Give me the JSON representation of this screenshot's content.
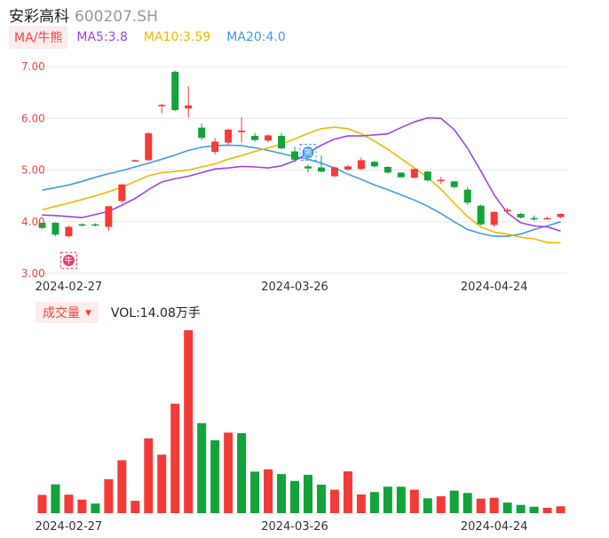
{
  "header": {
    "name": "安彩高科",
    "code": "600207.SH"
  },
  "ma_legend": {
    "tag": "MA/牛熊",
    "ma5": "MA5:3.8",
    "ma10": "MA10:3.59",
    "ma20": "MA20:4.0"
  },
  "volume_legend": {
    "tag": "成交量",
    "value": "VOL:14.08万手"
  },
  "colors": {
    "up": "#f23b36",
    "down": "#12a33a",
    "ma5": "#a244e6",
    "ma10": "#f2b900",
    "ma20": "#3f9be8",
    "grid": "#e8e8e8"
  },
  "markers": [
    {
      "label": "牛",
      "index": 2
    },
    {
      "label": "熊",
      "index": 20
    }
  ],
  "chart_data": [
    {
      "type": "candlestick",
      "y_ticks": [
        "3.00",
        "4.00",
        "5.00",
        "6.00",
        "7.00"
      ],
      "ylim": [
        3.0,
        7.0
      ],
      "x_ticks": [
        {
          "label": "2024-02-27",
          "index": 2
        },
        {
          "label": "2024-03-26",
          "index": 19
        },
        {
          "label": "2024-04-24",
          "index": 34
        }
      ],
      "candles": [
        {
          "o": 3.98,
          "c": 3.88,
          "h": 3.98,
          "l": 3.86
        },
        {
          "o": 3.98,
          "c": 3.75,
          "h": 3.99,
          "l": 3.72
        },
        {
          "o": 3.72,
          "c": 3.9,
          "h": 3.92,
          "l": 3.7
        },
        {
          "o": 3.95,
          "c": 3.93,
          "h": 3.97,
          "l": 3.91
        },
        {
          "o": 3.95,
          "c": 3.93,
          "h": 3.97,
          "l": 3.91
        },
        {
          "o": 3.9,
          "c": 4.3,
          "h": 4.3,
          "l": 3.82
        },
        {
          "o": 4.4,
          "c": 4.72,
          "h": 4.73,
          "l": 4.36
        },
        {
          "o": 5.19,
          "c": 5.19,
          "h": 5.2,
          "l": 5.18
        },
        {
          "o": 5.19,
          "c": 5.71,
          "h": 5.73,
          "l": 5.17
        },
        {
          "o": 6.26,
          "c": 6.26,
          "h": 6.28,
          "l": 6.1
        },
        {
          "o": 6.9,
          "c": 6.16,
          "h": 6.92,
          "l": 6.14
        },
        {
          "o": 6.19,
          "c": 6.25,
          "h": 6.62,
          "l": 6.02
        },
        {
          "o": 5.82,
          "c": 5.62,
          "h": 5.9,
          "l": 5.58
        },
        {
          "o": 5.35,
          "c": 5.55,
          "h": 5.62,
          "l": 5.3
        },
        {
          "o": 5.53,
          "c": 5.78,
          "h": 5.8,
          "l": 5.48
        },
        {
          "o": 5.73,
          "c": 5.76,
          "h": 6.02,
          "l": 5.53
        },
        {
          "o": 5.66,
          "c": 5.58,
          "h": 5.72,
          "l": 5.55
        },
        {
          "o": 5.57,
          "c": 5.67,
          "h": 5.69,
          "l": 5.54
        },
        {
          "o": 5.66,
          "c": 5.42,
          "h": 5.72,
          "l": 5.4
        },
        {
          "o": 5.36,
          "c": 5.2,
          "h": 5.45,
          "l": 5.15
        },
        {
          "o": 5.07,
          "c": 5.03,
          "h": 5.1,
          "l": 4.95
        },
        {
          "o": 5.05,
          "c": 4.97,
          "h": 5.28,
          "l": 4.95
        },
        {
          "o": 4.88,
          "c": 5.05,
          "h": 5.07,
          "l": 4.86
        },
        {
          "o": 5.01,
          "c": 5.07,
          "h": 5.1,
          "l": 4.98
        },
        {
          "o": 5.02,
          "c": 5.19,
          "h": 5.24,
          "l": 5.0
        },
        {
          "o": 5.16,
          "c": 5.07,
          "h": 5.17,
          "l": 5.05
        },
        {
          "o": 5.06,
          "c": 4.95,
          "h": 5.07,
          "l": 4.93
        },
        {
          "o": 4.95,
          "c": 4.86,
          "h": 4.96,
          "l": 4.85
        },
        {
          "o": 4.85,
          "c": 5.02,
          "h": 5.03,
          "l": 4.84
        },
        {
          "o": 4.97,
          "c": 4.8,
          "h": 4.98,
          "l": 4.78
        },
        {
          "o": 4.8,
          "c": 4.81,
          "h": 4.87,
          "l": 4.73
        },
        {
          "o": 4.78,
          "c": 4.67,
          "h": 4.79,
          "l": 4.65
        },
        {
          "o": 4.62,
          "c": 4.37,
          "h": 4.67,
          "l": 4.33
        },
        {
          "o": 4.31,
          "c": 3.95,
          "h": 4.33,
          "l": 3.93
        },
        {
          "o": 3.94,
          "c": 4.19,
          "h": 4.2,
          "l": 3.9
        },
        {
          "o": 4.2,
          "c": 4.23,
          "h": 4.27,
          "l": 4.15
        },
        {
          "o": 4.15,
          "c": 4.08,
          "h": 4.17,
          "l": 4.06
        },
        {
          "o": 4.07,
          "c": 4.05,
          "h": 4.12,
          "l": 4.02
        },
        {
          "o": 4.06,
          "c": 4.07,
          "h": 4.1,
          "l": 4.04
        },
        {
          "o": 4.09,
          "c": 4.15,
          "h": 4.16,
          "l": 4.07
        }
      ],
      "ma5": [
        4.13,
        4.12,
        4.1,
        4.08,
        4.14,
        4.2,
        4.32,
        4.45,
        4.62,
        4.77,
        4.83,
        4.88,
        4.95,
        5.02,
        5.04,
        5.07,
        5.06,
        5.04,
        5.08,
        5.18,
        5.33,
        5.48,
        5.6,
        5.66,
        5.66,
        5.68,
        5.7,
        5.82,
        5.93,
        6.01,
        6.0,
        5.78,
        5.42,
        4.98,
        4.52,
        4.17,
        3.98,
        3.92,
        3.9,
        3.82
      ],
      "ma10": [
        4.23,
        4.3,
        4.36,
        4.43,
        4.5,
        4.58,
        4.67,
        4.78,
        4.89,
        4.95,
        4.97,
        5.0,
        5.06,
        5.12,
        5.21,
        5.28,
        5.36,
        5.43,
        5.5,
        5.6,
        5.71,
        5.8,
        5.83,
        5.8,
        5.7,
        5.56,
        5.4,
        5.22,
        5.04,
        4.85,
        4.63,
        4.36,
        4.1,
        3.9,
        3.8,
        3.76,
        3.7,
        3.67,
        3.6,
        3.59
      ],
      "ma20": [
        4.61,
        4.66,
        4.71,
        4.78,
        4.86,
        4.93,
        4.99,
        5.06,
        5.13,
        5.21,
        5.29,
        5.38,
        5.44,
        5.47,
        5.48,
        5.47,
        5.43,
        5.38,
        5.32,
        5.26,
        5.21,
        5.13,
        5.04,
        4.92,
        4.82,
        4.71,
        4.62,
        4.52,
        4.42,
        4.3,
        4.16,
        4.0,
        3.85,
        3.77,
        3.72,
        3.72,
        3.76,
        3.85,
        3.92,
        4.0
      ]
    },
    {
      "type": "bar",
      "series_name": "成交量",
      "x_ticks": [
        {
          "label": "2024-02-27",
          "index": 2
        },
        {
          "label": "2024-03-26",
          "index": 19
        },
        {
          "label": "2024-04-24",
          "index": 34
        }
      ],
      "values": [
        13.3,
        21.0,
        13.5,
        9.9,
        7.0,
        24.8,
        38.6,
        9.0,
        54.6,
        42.7,
        79.9,
        133.5,
        65.7,
        53.2,
        58.8,
        58.4,
        30.3,
        32.0,
        28.5,
        23.5,
        28.0,
        20.8,
        17.1,
        30.5,
        13.6,
        15.4,
        19.3,
        19.3,
        17.1,
        10.8,
        12.3,
        16.4,
        14.7,
        10.6,
        11.2,
        7.7,
        6.0,
        4.7,
        3.9,
        5.0
      ],
      "directions": [
        "up",
        "down",
        "up",
        "up",
        "down",
        "up",
        "up",
        "up",
        "up",
        "up",
        "up",
        "up",
        "down",
        "down",
        "up",
        "down",
        "down",
        "up",
        "down",
        "down",
        "down",
        "down",
        "up",
        "up",
        "up",
        "down",
        "down",
        "down",
        "up",
        "down",
        "up",
        "down",
        "down",
        "up",
        "up",
        "down",
        "down",
        "down",
        "up",
        "up"
      ]
    }
  ]
}
